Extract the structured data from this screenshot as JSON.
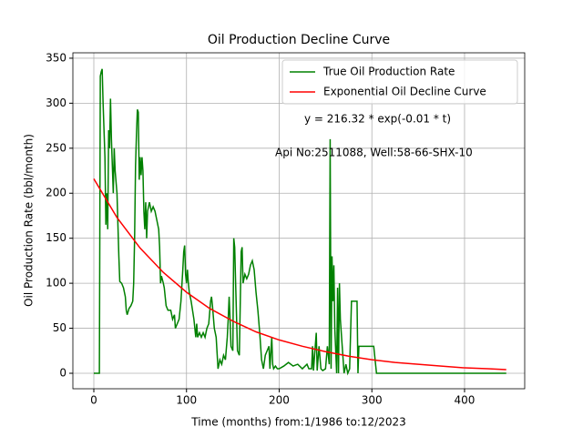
{
  "chart_data": {
    "type": "line",
    "title": "Oil Production Decline Curve",
    "xlabel": "Time (months) from:1/1986 to:12/2023",
    "ylabel": "Oil Production Rate (bbl/month)",
    "annotations": [
      "y = 216.32 * exp(-0.01 * t)",
      "Api No:2511088, Well:58-66-SHX-10"
    ],
    "xlim": [
      -22.6,
      464.9
    ],
    "ylim": [
      -17.2,
      356
    ],
    "xticks": [
      0,
      100,
      200,
      300,
      400
    ],
    "yticks": [
      0,
      50,
      100,
      150,
      200,
      250,
      300,
      350
    ],
    "grid": true,
    "legend": "upper right",
    "series": [
      {
        "name": "True Oil Production Rate",
        "color": "#008000",
        "x": [
          0,
          5,
          6,
          7,
          8,
          9,
          10,
          12,
          13,
          14,
          15,
          16,
          17,
          18,
          19,
          20,
          21,
          22,
          23,
          25,
          27,
          28,
          30,
          32,
          34,
          35,
          36,
          38,
          40,
          42,
          43,
          44,
          45,
          46,
          47,
          48,
          49,
          50,
          51,
          52,
          53,
          54,
          55,
          56,
          57,
          58,
          60,
          62,
          64,
          66,
          68,
          70,
          71,
          72,
          73,
          75,
          76,
          78,
          80,
          83,
          85,
          87,
          88,
          90,
          92,
          94,
          96,
          97,
          98,
          99,
          100,
          101,
          102,
          103,
          105,
          108,
          110,
          111,
          112,
          114,
          116,
          118,
          120,
          122,
          124,
          126,
          127,
          128,
          130,
          132,
          134,
          136,
          138,
          140,
          142,
          144,
          145,
          146,
          147,
          148,
          150,
          151,
          152,
          153,
          155,
          157,
          159,
          160,
          161,
          163,
          165,
          167,
          169,
          171,
          173,
          175,
          177,
          179,
          181,
          183,
          185,
          187,
          189,
          190,
          192,
          193,
          194,
          196,
          198,
          200,
          205,
          210,
          215,
          220,
          225,
          230,
          232,
          235,
          236,
          237,
          240,
          241,
          243,
          245,
          247,
          250,
          252,
          254,
          255,
          256,
          257,
          258,
          259,
          260,
          261,
          262,
          263,
          264,
          265,
          266,
          268,
          270,
          272,
          274,
          276,
          278,
          282,
          284,
          285,
          286,
          290,
          295,
          300,
          302,
          305,
          310,
          445
        ],
        "values": [
          0,
          0,
          0,
          330,
          335,
          338,
          300,
          240,
          165,
          200,
          160,
          270,
          250,
          305,
          260,
          230,
          200,
          250,
          225,
          200,
          130,
          102,
          100,
          95,
          85,
          70,
          65,
          72,
          75,
          80,
          100,
          150,
          230,
          265,
          293,
          290,
          215,
          240,
          220,
          240,
          225,
          180,
          160,
          190,
          150,
          180,
          190,
          180,
          185,
          180,
          170,
          160,
          140,
          100,
          108,
          100,
          95,
          75,
          70,
          70,
          60,
          65,
          50,
          55,
          60,
          80,
          115,
          135,
          142,
          110,
          100,
          115,
          100,
          90,
          80,
          60,
          40,
          55,
          40,
          45,
          40,
          45,
          40,
          50,
          55,
          80,
          85,
          75,
          50,
          40,
          5,
          15,
          10,
          20,
          15,
          40,
          60,
          85,
          60,
          30,
          25,
          150,
          140,
          100,
          25,
          20,
          135,
          140,
          100,
          110,
          105,
          110,
          120,
          125,
          115,
          90,
          70,
          45,
          15,
          5,
          20,
          25,
          30,
          5,
          40,
          10,
          5,
          8,
          5,
          5,
          8,
          12,
          8,
          10,
          5,
          10,
          5,
          5,
          30,
          3,
          45,
          3,
          30,
          5,
          3,
          5,
          30,
          10,
          260,
          5,
          130,
          80,
          120,
          50,
          25,
          0,
          95,
          0,
          100,
          60,
          30,
          0,
          10,
          0,
          5,
          80,
          80,
          80,
          0,
          30,
          30,
          30,
          30,
          30,
          0,
          0,
          0
        ]
      },
      {
        "name": "Exponential Oil Decline Curve",
        "color": "#ff0000",
        "x": [
          0,
          25,
          50,
          75,
          100,
          125,
          150,
          175,
          200,
          225,
          250,
          275,
          300,
          325,
          350,
          375,
          400,
          425,
          445
        ],
        "values": [
          216,
          173,
          139,
          112,
          90,
          72,
          58,
          46,
          37,
          30,
          24,
          19,
          15,
          12,
          10,
          8,
          6,
          5,
          4
        ]
      }
    ]
  }
}
